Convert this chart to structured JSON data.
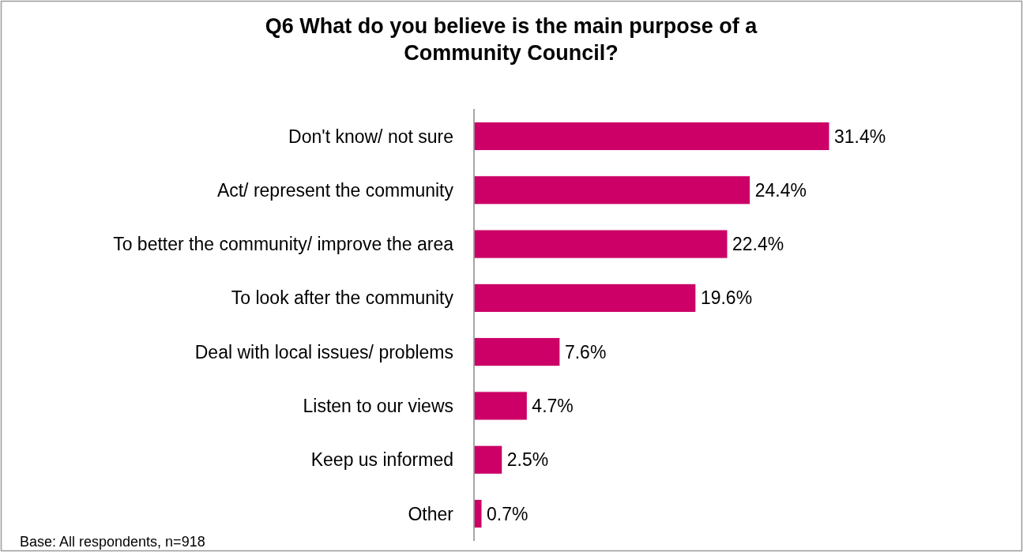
{
  "chart_data": {
    "type": "bar",
    "orientation": "horizontal",
    "title": "Q6 What do you believe is the main purpose of a Community Council?",
    "categories": [
      "Don't know/ not sure",
      "Act/ represent the community",
      "To better the community/ improve the area",
      "To look after the community",
      "Deal with local issues/ problems",
      "Listen to our views",
      "Keep us informed",
      "Other"
    ],
    "values": [
      31.4,
      24.4,
      22.4,
      19.6,
      7.6,
      4.7,
      2.5,
      0.7
    ],
    "value_labels": [
      "31.4%",
      "24.4%",
      "22.4%",
      "19.6%",
      "7.6%",
      "4.7%",
      "2.5%",
      "0.7%"
    ],
    "color": "#cc0066",
    "annotations": [
      "Base: All respondents, n=918"
    ]
  }
}
